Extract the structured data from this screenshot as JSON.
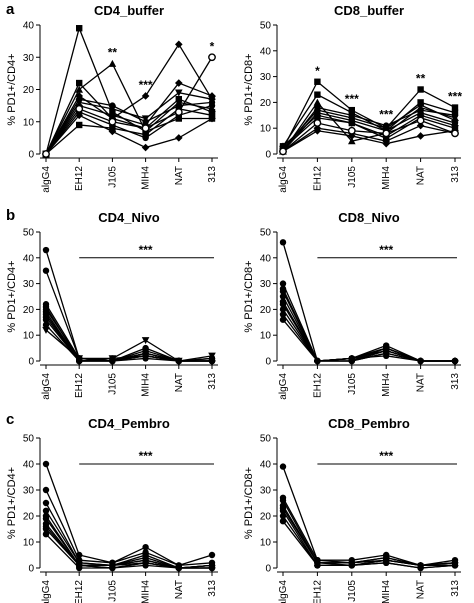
{
  "panel_letters": [
    "a",
    "b",
    "c"
  ],
  "chart_data": [
    {
      "type": "line",
      "title": "CD4_buffer",
      "ylabel": "% PD1+/CD4+",
      "categories": [
        "algG4",
        "EH12",
        "J105",
        "MIH4",
        "NAT",
        "313"
      ],
      "ylim": [
        0,
        40
      ],
      "yticks": [
        0,
        10,
        20,
        30,
        40
      ],
      "significance": [
        {
          "at": "J105",
          "label": "**"
        },
        {
          "at": "MIH4",
          "label": "***"
        },
        {
          "at": "313",
          "label": "*"
        }
      ],
      "series": [
        {
          "marker": "square",
          "values": [
            0,
            39,
            13,
            7,
            11,
            11
          ]
        },
        {
          "marker": "triangle",
          "values": [
            0,
            20,
            28,
            7,
            16,
            14
          ]
        },
        {
          "marker": "diamond",
          "values": [
            0,
            18,
            11,
            18,
            34,
            17
          ]
        },
        {
          "marker": "circle",
          "values": [
            0,
            17,
            15,
            10,
            15,
            16
          ]
        },
        {
          "marker": "triangle-down",
          "values": [
            0,
            16,
            14,
            11,
            19,
            17
          ]
        },
        {
          "marker": "diamond",
          "values": [
            0,
            15,
            12,
            9,
            22,
            18
          ]
        },
        {
          "marker": "square",
          "values": [
            0,
            22,
            11,
            8,
            17,
            13
          ]
        },
        {
          "marker": "circle",
          "values": [
            0,
            13,
            9,
            5,
            12,
            15
          ]
        },
        {
          "marker": "diamond",
          "values": [
            0,
            12,
            7,
            2,
            5,
            11
          ]
        },
        {
          "marker": "square",
          "values": [
            0,
            9,
            8,
            6,
            14,
            12
          ]
        },
        {
          "marker": "open-circle",
          "values": [
            0,
            14,
            10,
            8,
            13,
            30
          ]
        }
      ]
    },
    {
      "type": "line",
      "title": "CD8_buffer",
      "ylabel": "% PD1+/CD8+",
      "categories": [
        "algG4",
        "EH12",
        "J105",
        "MIH4",
        "NAT",
        "313"
      ],
      "ylim": [
        0,
        50
      ],
      "yticks": [
        0,
        10,
        20,
        30,
        40,
        50
      ],
      "significance": [
        {
          "at": "EH12",
          "label": "*"
        },
        {
          "at": "J105",
          "label": "***"
        },
        {
          "at": "MIH4",
          "label": "***"
        },
        {
          "at": "NAT",
          "label": "**"
        },
        {
          "at": "313",
          "label": "***"
        }
      ],
      "series": [
        {
          "marker": "square",
          "values": [
            2,
            28,
            17,
            10,
            25,
            18
          ]
        },
        {
          "marker": "square",
          "values": [
            3,
            23,
            16,
            9,
            20,
            16
          ]
        },
        {
          "marker": "triangle",
          "values": [
            1,
            20,
            5,
            8,
            18,
            14
          ]
        },
        {
          "marker": "circle",
          "values": [
            1,
            18,
            15,
            11,
            17,
            15
          ]
        },
        {
          "marker": "diamond",
          "values": [
            2,
            17,
            14,
            10,
            19,
            13
          ]
        },
        {
          "marker": "circle",
          "values": [
            1,
            16,
            13,
            9,
            16,
            12
          ]
        },
        {
          "marker": "diamond",
          "values": [
            3,
            15,
            12,
            7,
            15,
            11
          ]
        },
        {
          "marker": "square",
          "values": [
            2,
            14,
            12,
            6,
            14,
            10
          ]
        },
        {
          "marker": "diamond",
          "values": [
            1,
            10,
            8,
            5,
            11,
            8
          ]
        },
        {
          "marker": "diamond",
          "values": [
            1,
            9,
            7,
            4,
            7,
            9
          ]
        },
        {
          "marker": "open-circle",
          "values": [
            1,
            12,
            9,
            8,
            13,
            8
          ]
        }
      ]
    },
    {
      "type": "line",
      "title": "CD4_Nivo",
      "ylabel": "% PD1+/CD4+",
      "categories": [
        "algG4",
        "EH12",
        "J105",
        "MIH4",
        "NAT",
        "313"
      ],
      "ylim": [
        0,
        50
      ],
      "yticks": [
        0,
        10,
        20,
        30,
        40,
        50
      ],
      "significance": [
        {
          "from": "EH12",
          "to": "313",
          "label": "***"
        }
      ],
      "series": [
        {
          "marker": "circle",
          "values": [
            43,
            1,
            0,
            2,
            0,
            1
          ]
        },
        {
          "marker": "circle",
          "values": [
            35,
            1,
            0,
            3,
            0,
            0
          ]
        },
        {
          "marker": "circle",
          "values": [
            22,
            1,
            0,
            5,
            0,
            0
          ]
        },
        {
          "marker": "circle",
          "values": [
            21,
            0,
            0,
            4,
            0,
            1
          ]
        },
        {
          "marker": "circle",
          "values": [
            20,
            1,
            0,
            3,
            0,
            0
          ]
        },
        {
          "marker": "circle",
          "values": [
            19,
            0,
            1,
            2,
            0,
            0
          ]
        },
        {
          "marker": "circle",
          "values": [
            18,
            0,
            0,
            1,
            0,
            0
          ]
        },
        {
          "marker": "circle",
          "values": [
            17,
            0,
            0,
            3,
            0,
            0
          ]
        },
        {
          "marker": "circle",
          "values": [
            16,
            0,
            0,
            2,
            0,
            0
          ]
        },
        {
          "marker": "circle",
          "values": [
            14,
            0,
            0,
            2,
            0,
            0
          ]
        },
        {
          "marker": "triangle-down",
          "values": [
            12,
            1,
            1,
            8,
            0,
            2
          ]
        }
      ]
    },
    {
      "type": "line",
      "title": "CD8_Nivo",
      "ylabel": "% PD1+/CD8+",
      "categories": [
        "algG4",
        "EH12",
        "J105",
        "MIH4",
        "NAT",
        "313"
      ],
      "ylim": [
        0,
        50
      ],
      "yticks": [
        0,
        10,
        20,
        30,
        40,
        50
      ],
      "significance": [
        {
          "from": "EH12",
          "to": "313",
          "label": "***"
        }
      ],
      "series": [
        {
          "marker": "circle",
          "values": [
            46,
            0,
            1,
            6,
            0,
            0
          ]
        },
        {
          "marker": "circle",
          "values": [
            30,
            0,
            1,
            5,
            0,
            0
          ]
        },
        {
          "marker": "circle",
          "values": [
            28,
            0,
            1,
            5,
            0,
            0
          ]
        },
        {
          "marker": "circle",
          "values": [
            27,
            0,
            1,
            4,
            0,
            0
          ]
        },
        {
          "marker": "circle",
          "values": [
            25,
            0,
            0,
            5,
            0,
            0
          ]
        },
        {
          "marker": "circle",
          "values": [
            23,
            0,
            0,
            4,
            0,
            0
          ]
        },
        {
          "marker": "circle",
          "values": [
            22,
            0,
            0,
            3,
            0,
            0
          ]
        },
        {
          "marker": "circle",
          "values": [
            20,
            0,
            0,
            3,
            0,
            0
          ]
        },
        {
          "marker": "circle",
          "values": [
            18,
            0,
            1,
            4,
            0,
            0
          ]
        },
        {
          "marker": "circle",
          "values": [
            16,
            0,
            1,
            2,
            0,
            0
          ]
        }
      ]
    },
    {
      "type": "line",
      "title": "CD4_Pembro",
      "ylabel": "% PD1+/CD4+",
      "categories": [
        "algG4",
        "EH12",
        "J105",
        "MIH4",
        "NAT",
        "313"
      ],
      "ylim": [
        0,
        50
      ],
      "yticks": [
        0,
        10,
        20,
        30,
        40,
        50
      ],
      "significance": [
        {
          "from": "EH12",
          "to": "313",
          "label": "***"
        }
      ],
      "series": [
        {
          "marker": "circle",
          "values": [
            40,
            5,
            2,
            8,
            1,
            5
          ]
        },
        {
          "marker": "circle",
          "values": [
            30,
            3,
            2,
            6,
            1,
            2
          ]
        },
        {
          "marker": "circle",
          "values": [
            25,
            2,
            1,
            5,
            0,
            1
          ]
        },
        {
          "marker": "circle",
          "values": [
            22,
            2,
            1,
            4,
            0,
            1
          ]
        },
        {
          "marker": "circle",
          "values": [
            20,
            1,
            1,
            3,
            0,
            0
          ]
        },
        {
          "marker": "circle",
          "values": [
            19,
            1,
            1,
            3,
            0,
            1
          ]
        },
        {
          "marker": "circle",
          "values": [
            17,
            1,
            0,
            2,
            0,
            0
          ]
        },
        {
          "marker": "circle",
          "values": [
            16,
            1,
            1,
            2,
            0,
            0
          ]
        },
        {
          "marker": "circle",
          "values": [
            15,
            1,
            0,
            2,
            0,
            1
          ]
        },
        {
          "marker": "circle",
          "values": [
            13,
            0,
            0,
            1,
            0,
            0
          ]
        }
      ]
    },
    {
      "type": "line",
      "title": "CD8_Pembro",
      "ylabel": "% PD1+/CD8+",
      "categories": [
        "algG4",
        "EH12",
        "J105",
        "MIH4",
        "NAT",
        "313"
      ],
      "ylim": [
        0,
        50
      ],
      "yticks": [
        0,
        10,
        20,
        30,
        40,
        50
      ],
      "significance": [
        {
          "from": "EH12",
          "to": "313",
          "label": "***"
        }
      ],
      "series": [
        {
          "marker": "circle",
          "values": [
            39,
            3,
            3,
            5,
            1,
            3
          ]
        },
        {
          "marker": "circle",
          "values": [
            27,
            3,
            2,
            4,
            1,
            2
          ]
        },
        {
          "marker": "circle",
          "values": [
            26,
            2,
            2,
            4,
            1,
            2
          ]
        },
        {
          "marker": "circle",
          "values": [
            24,
            2,
            2,
            3,
            1,
            2
          ]
        },
        {
          "marker": "circle",
          "values": [
            23,
            2,
            1,
            3,
            1,
            1
          ]
        },
        {
          "marker": "circle",
          "values": [
            22,
            1,
            1,
            3,
            1,
            1
          ]
        },
        {
          "marker": "circle",
          "values": [
            20,
            1,
            1,
            2,
            0,
            1
          ]
        },
        {
          "marker": "circle",
          "values": [
            18,
            1,
            1,
            2,
            0,
            1
          ]
        }
      ]
    }
  ]
}
